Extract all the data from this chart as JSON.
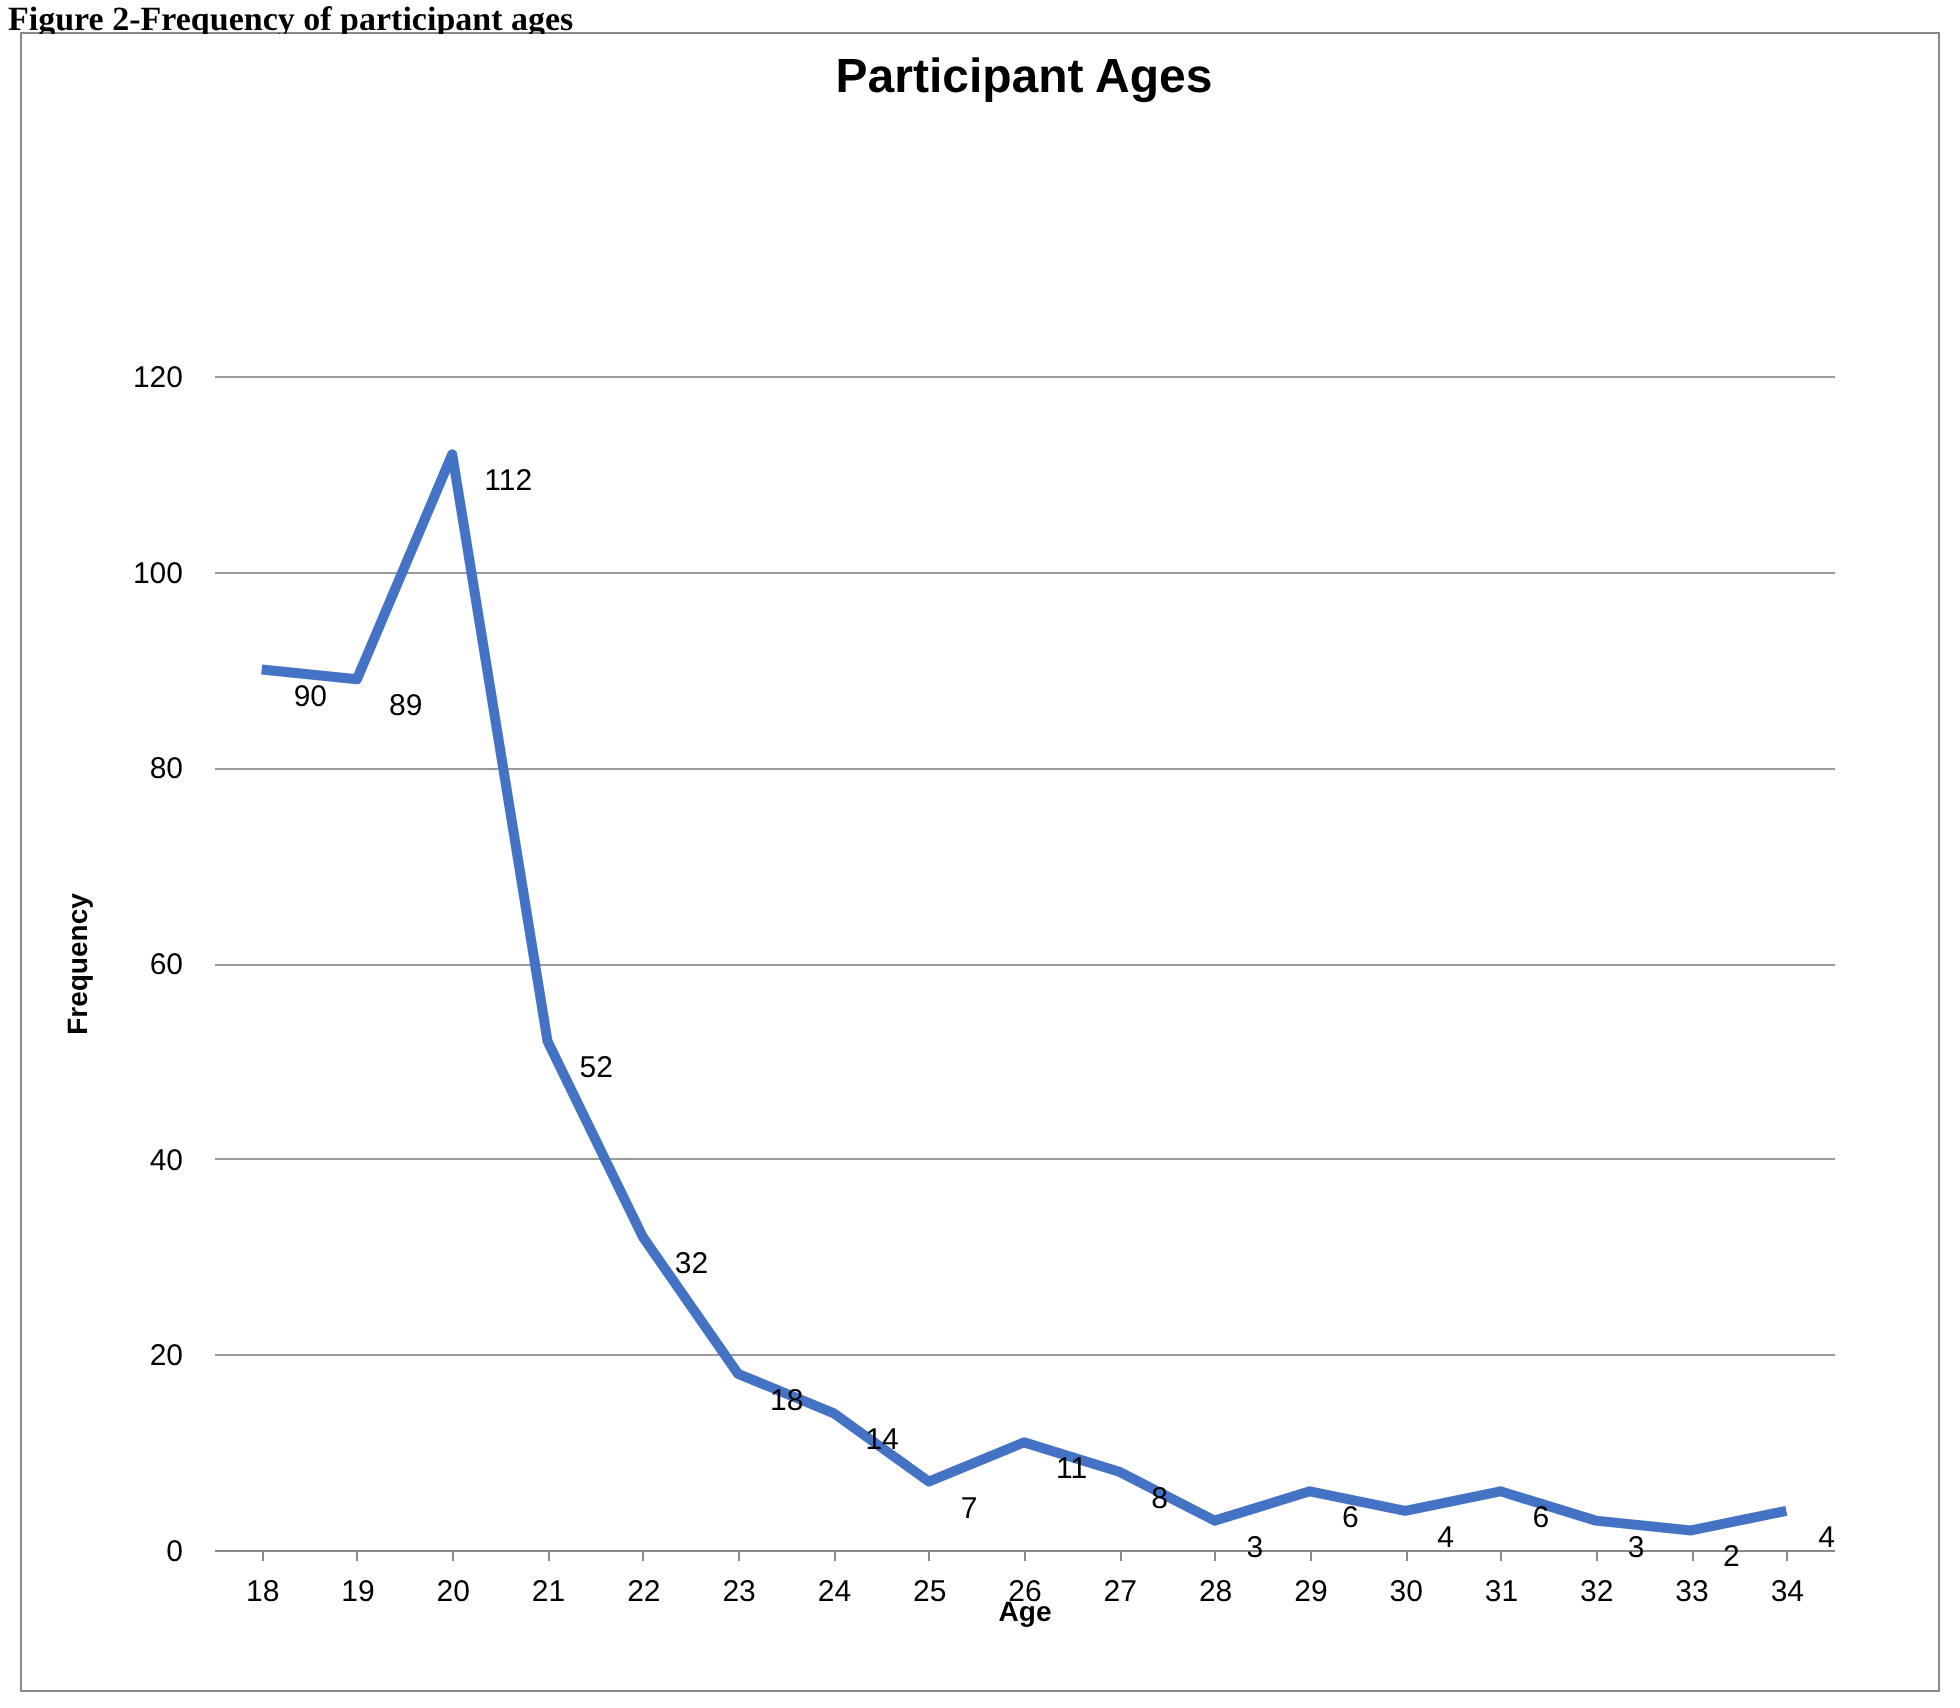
{
  "chart_data": {
    "type": "line",
    "title": "Participant Ages",
    "xlabel": "Age",
    "ylabel": "Frequency",
    "annotations": [
      "Figure 2-Frequency of participant ages"
    ],
    "categories": [
      "18",
      "19",
      "20",
      "21",
      "22",
      "23",
      "24",
      "25",
      "26",
      "27",
      "28",
      "29",
      "30",
      "31",
      "32",
      "33",
      "34"
    ],
    "series": [
      {
        "color": "#4472c4",
        "values": [
          90,
          89,
          112,
          52,
          32,
          18,
          14,
          7,
          11,
          8,
          3,
          6,
          4,
          6,
          3,
          2,
          4
        ]
      }
    ],
    "ylim": [
      0,
      120
    ],
    "yticks": [
      0,
      20,
      40,
      60,
      80,
      100,
      120
    ],
    "grid": "y",
    "data_labels": true,
    "legend": false,
    "marker": "none",
    "line_style": "solid"
  }
}
